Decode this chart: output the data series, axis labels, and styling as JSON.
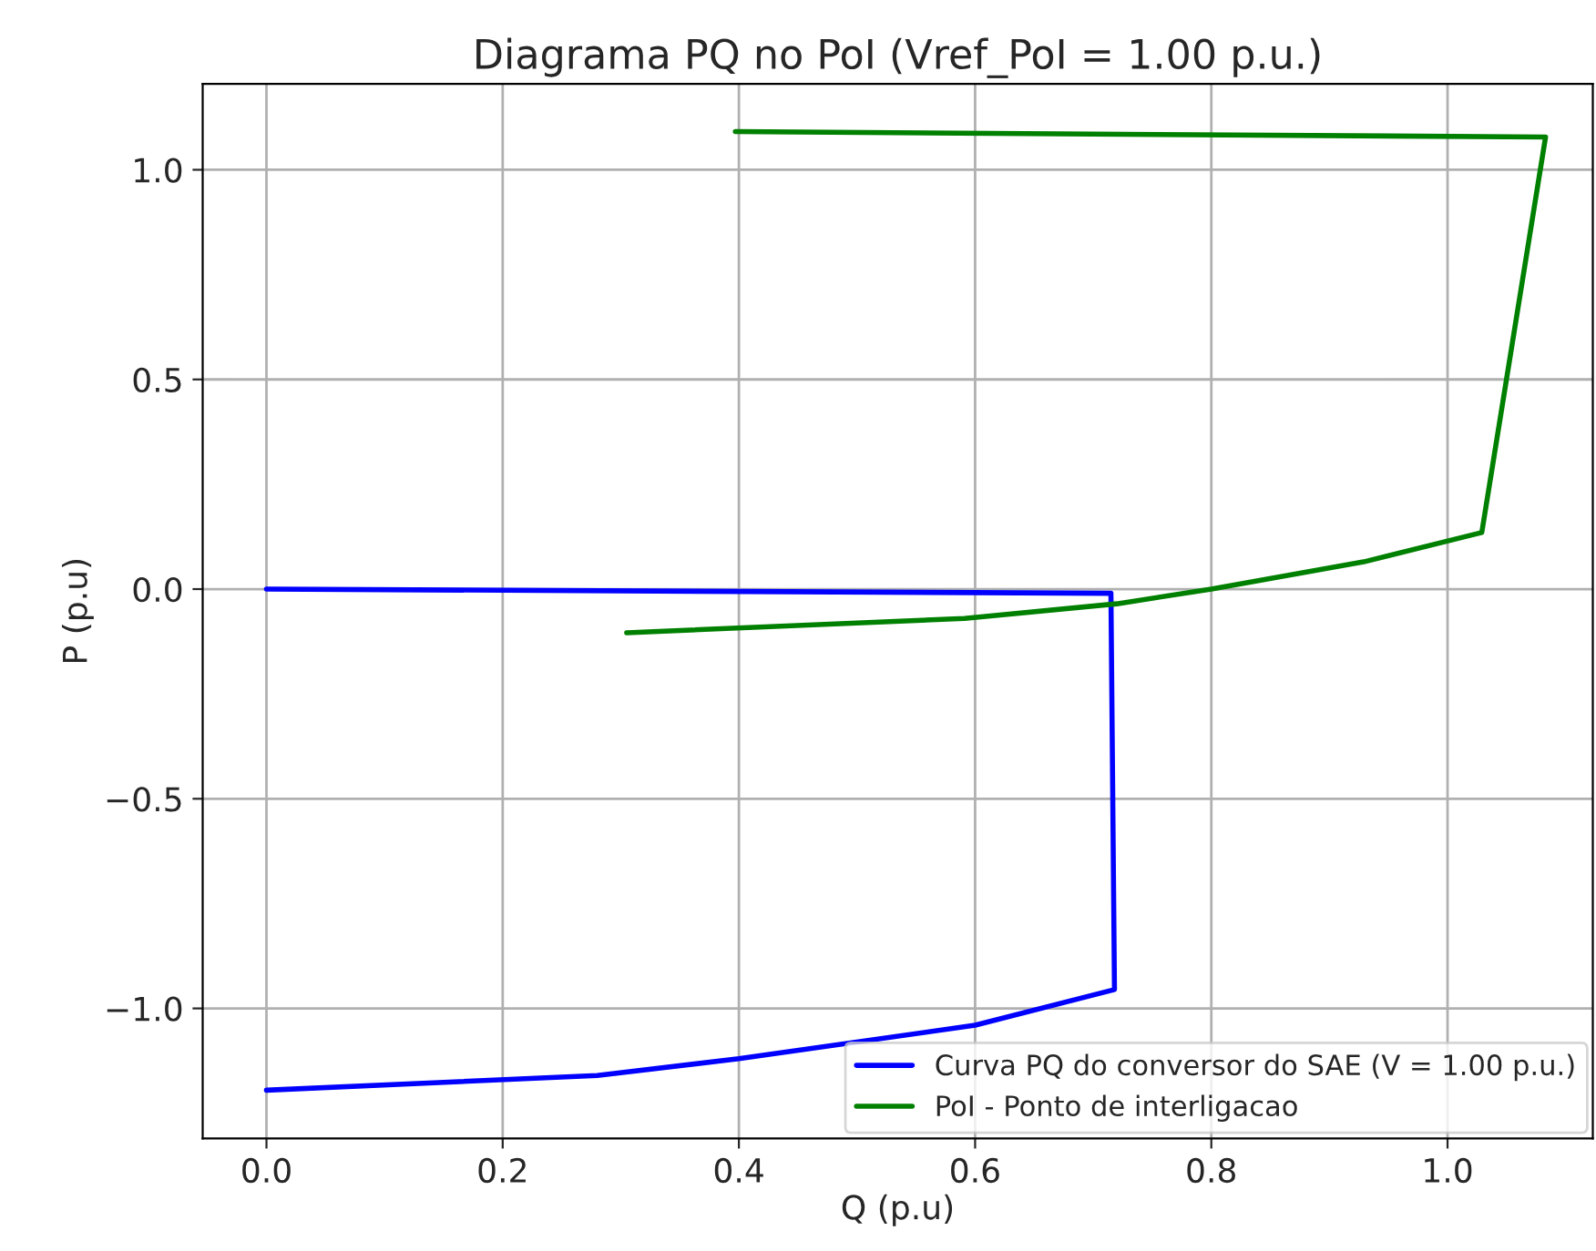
{
  "chart_data": {
    "type": "line",
    "title": "Diagrama PQ no PoI (Vref_PoI = 1.00 p.u.)",
    "xlabel": "Q (p.u)",
    "ylabel": "P (p.u)",
    "series": [
      {
        "name": "Curva PQ do conversor do SAE (V = 1.00 p.u.)",
        "color": "#0000ff",
        "x": [
          0.0,
          0.715,
          0.718,
          0.6,
          0.4,
          0.28,
          0.0
        ],
        "values": [
          0.0,
          -0.01,
          -0.955,
          -1.04,
          -1.12,
          -1.16,
          -1.195
        ]
      },
      {
        "name": "PoI - Ponto de interligacao",
        "color": "#008000",
        "x": [
          0.397,
          1.083,
          1.029,
          0.929,
          0.8,
          0.72,
          0.591,
          0.305
        ],
        "values": [
          1.091,
          1.078,
          0.135,
          0.065,
          0.0,
          -0.035,
          -0.07,
          -0.104
        ]
      }
    ],
    "xlim": [
      -0.054,
      1.123
    ],
    "ylim": [
      -1.31,
      1.205
    ],
    "xticks": [
      {
        "value": 0.0,
        "label": "0.0"
      },
      {
        "value": 0.2,
        "label": "0.2"
      },
      {
        "value": 0.4,
        "label": "0.4"
      },
      {
        "value": 0.6,
        "label": "0.6"
      },
      {
        "value": 0.8,
        "label": "0.8"
      },
      {
        "value": 1.0,
        "label": "1.0"
      }
    ],
    "yticks": [
      {
        "value": -1.0,
        "label": "−1.0"
      },
      {
        "value": -0.5,
        "label": "−0.5"
      },
      {
        "value": 0.0,
        "label": "0.0"
      },
      {
        "value": 0.5,
        "label": "0.5"
      },
      {
        "value": 1.0,
        "label": "1.0"
      }
    ],
    "grid": true,
    "legend": "bottom right",
    "marker": "none",
    "line_style": "solid"
  }
}
